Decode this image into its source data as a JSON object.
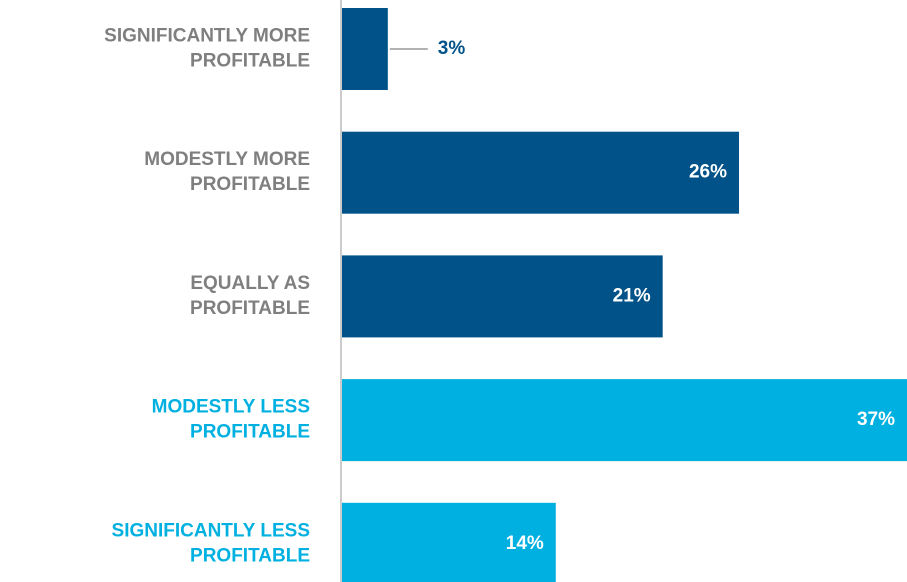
{
  "chart_data": {
    "type": "hbar",
    "categories": [
      [
        "SIGNIFICANTLY MORE",
        "PROFITABLE"
      ],
      [
        "MODESTLY MORE",
        "PROFITABLE"
      ],
      [
        "EQUALLY AS",
        "PROFITABLE"
      ],
      [
        "MODESTLY LESS",
        "PROFITABLE"
      ],
      [
        "SIGNIFICANTLY LESS",
        "PROFITABLE"
      ]
    ],
    "values": [
      3,
      26,
      21,
      37,
      14
    ],
    "value_labels": [
      "3%",
      "26%",
      "21%",
      "37%",
      "14%"
    ],
    "colors": [
      "#005288",
      "#005288",
      "#005288",
      "#00b0e0",
      "#00b0e0"
    ],
    "label_colors": [
      "#7f7f7f",
      "#7f7f7f",
      "#7f7f7f",
      "#00b0e0",
      "#00b0e0"
    ]
  }
}
